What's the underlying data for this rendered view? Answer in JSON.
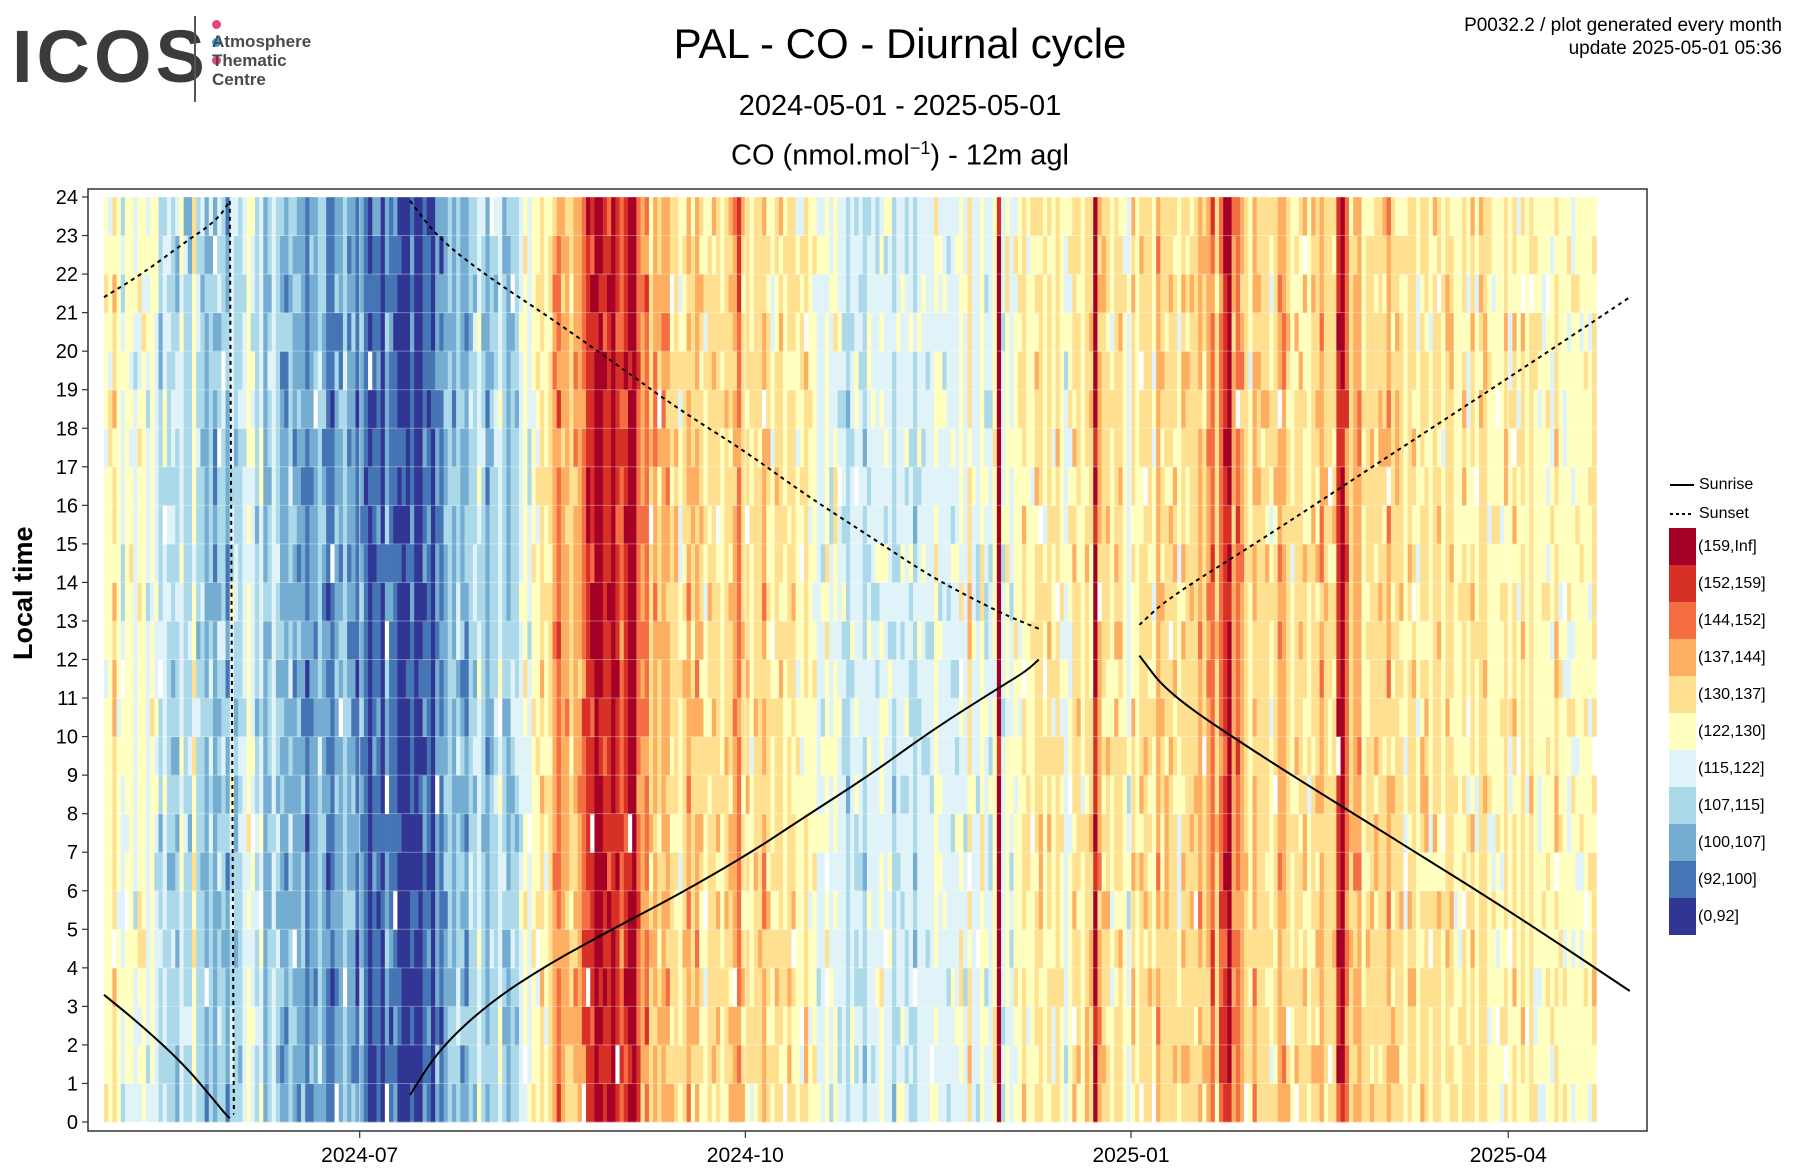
{
  "logo": {
    "word": "ICOS",
    "sub": [
      "Atmosphere",
      "Thematic",
      "Centre"
    ],
    "dot_colors": [
      "#e8457c",
      "#2aa8e0",
      "#e8457c"
    ]
  },
  "header": {
    "meta_line1": "P0032.2 / plot generated every month",
    "meta_line2": "update  2025-05-01 05:36"
  },
  "chart_data": {
    "type": "heatmap",
    "title": "PAL - CO - Diurnal cycle",
    "subtitle": "2024-05-01 - 2025-05-01",
    "variable_label_prefix": "CO (nmol.mol",
    "variable_label_exp": "−1",
    "variable_label_suffix": ") - 12m agl",
    "ylabel": "Local time",
    "xlabel": "",
    "x_range": [
      "2024-05-01",
      "2025-05-01"
    ],
    "x_ticks": [
      "2024-07",
      "2024-10",
      "2025-01",
      "2025-04"
    ],
    "x_tick_dates": [
      "2024-07-01",
      "2024-10-01",
      "2025-01-01",
      "2025-04-01"
    ],
    "y_range": [
      0,
      24
    ],
    "y_ticks": [
      0,
      1,
      2,
      3,
      4,
      5,
      6,
      7,
      8,
      9,
      10,
      11,
      12,
      13,
      14,
      15,
      16,
      17,
      18,
      19,
      20,
      21,
      22,
      23,
      24
    ],
    "grid": true,
    "legend_position": "right",
    "color_classes": [
      {
        "label": "(159,Inf]",
        "color": "#a50026"
      },
      {
        "label": "(152,159]",
        "color": "#d73027"
      },
      {
        "label": "(144,152]",
        "color": "#f46d43"
      },
      {
        "label": "(137,144]",
        "color": "#fdae61"
      },
      {
        "label": "(130,137]",
        "color": "#fee090"
      },
      {
        "label": "(122,130]",
        "color": "#ffffbf"
      },
      {
        "label": "(115,122]",
        "color": "#e0f3f8"
      },
      {
        "label": "(107,115]",
        "color": "#abd9e9"
      },
      {
        "label": "(100,107]",
        "color": "#74add1"
      },
      {
        "label": "(92,100]",
        "color": "#4575b4"
      },
      {
        "label": "(0,92]",
        "color": "#313695"
      }
    ],
    "daily_class_index": [
      5,
      5,
      4,
      5,
      6,
      5,
      5,
      6,
      5,
      5,
      6,
      5,
      6,
      7,
      6,
      7,
      7,
      7,
      6,
      7,
      7,
      5,
      7,
      7,
      8,
      7,
      8,
      7,
      7,
      8,
      6,
      7,
      7,
      6,
      5,
      6,
      7,
      6,
      8,
      7,
      6,
      7,
      8,
      8,
      7,
      8,
      8,
      8,
      9,
      8,
      8,
      7,
      8,
      9,
      9,
      8,
      8,
      7,
      8,
      8,
      9,
      8,
      9,
      10,
      9,
      9,
      10,
      8,
      9,
      9,
      10,
      10,
      10,
      9,
      10,
      10,
      9,
      9,
      10,
      8,
      9,
      8,
      7,
      8,
      7,
      8,
      8,
      7,
      7,
      6,
      7,
      8,
      7,
      7,
      6,
      7,
      8,
      7,
      7,
      6,
      5,
      6,
      5,
      5,
      4,
      5,
      4,
      3,
      2,
      3,
      3,
      4,
      3,
      3,
      2,
      1,
      1,
      0,
      0,
      1,
      1,
      0,
      1,
      2,
      1,
      0,
      0,
      2,
      3,
      2,
      4,
      3,
      4,
      3,
      3,
      4,
      4,
      5,
      4,
      3,
      4,
      3,
      4,
      5,
      4,
      4,
      4,
      5,
      4,
      4,
      3,
      2,
      4,
      4,
      5,
      4,
      4,
      3,
      4,
      5,
      4,
      4,
      5,
      4,
      4,
      5,
      5,
      4,
      5,
      5,
      6,
      6,
      5,
      6,
      5,
      6,
      6,
      7,
      6,
      6,
      6,
      7,
      6,
      6,
      6,
      5,
      6,
      6,
      7,
      6,
      6,
      6,
      6,
      7,
      6,
      6,
      6,
      6,
      5,
      6,
      6,
      6,
      6,
      6,
      5,
      6,
      4,
      6,
      6,
      5,
      6,
      6,
      5,
      0,
      6,
      5,
      6,
      5,
      5,
      4,
      5,
      5,
      4,
      4,
      5,
      4,
      5,
      4,
      5,
      6,
      5,
      4,
      4,
      5,
      4,
      4,
      0,
      3,
      4,
      4,
      5,
      4,
      4,
      5,
      6,
      4,
      5,
      4,
      4,
      4,
      5,
      3,
      4,
      4,
      4,
      4,
      5,
      4,
      4,
      4,
      4,
      3,
      4,
      3,
      2,
      4,
      2,
      1,
      0,
      3,
      2,
      3,
      4,
      5,
      3,
      4,
      4,
      4,
      5,
      4,
      3,
      3,
      4,
      5,
      4,
      4,
      4,
      5,
      4,
      4,
      3,
      4,
      4,
      4,
      1,
      0,
      2,
      4,
      3,
      3,
      5,
      4,
      4,
      4,
      4,
      4,
      3,
      4,
      4,
      4,
      5,
      4,
      4,
      5,
      4,
      4,
      5,
      4,
      4,
      5,
      4,
      4,
      5,
      5,
      4,
      5,
      4,
      5,
      4,
      4,
      5,
      5,
      5,
      5,
      4,
      5,
      4,
      5,
      4,
      5,
      4,
      5,
      5,
      5,
      5,
      5,
      4,
      5,
      5,
      5,
      5,
      5,
      5,
      5,
      5,
      4
    ],
    "sunrise": {
      "name": "Sunrise",
      "dates": [
        "2024-05-01",
        "2024-05-10",
        "2024-05-20",
        "2024-05-27",
        "2024-05-30",
        "2024-05-31"
      ],
      "hours": [
        3.3,
        2.5,
        1.5,
        0.6,
        0.2,
        0.1
      ],
      "dates2": [
        "2024-07-13",
        "2024-07-20",
        "2024-08-01",
        "2024-08-15",
        "2024-09-01",
        "2024-09-15",
        "2024-10-01",
        "2024-10-15",
        "2024-11-01",
        "2024-11-15",
        "2024-12-01",
        "2024-12-07",
        "2024-12-10"
      ],
      "hours2": [
        0.7,
        1.9,
        3.1,
        4.1,
        5.1,
        5.9,
        6.9,
        7.9,
        9.1,
        10.2,
        11.3,
        11.7,
        12.0
      ],
      "dates3": [
        "2025-01-03",
        "2025-01-10",
        "2025-02-01",
        "2025-03-01",
        "2025-04-01",
        "2025-04-30"
      ],
      "hours3": [
        12.1,
        11.1,
        9.5,
        7.6,
        5.5,
        3.4
      ]
    },
    "sunset": {
      "name": "Sunset",
      "dates": [
        "2024-05-01",
        "2024-05-10",
        "2024-05-20",
        "2024-05-28",
        "2024-05-31"
      ],
      "hours": [
        21.4,
        22.0,
        22.8,
        23.4,
        23.9
      ],
      "dates2": [
        "2024-05-31",
        "2024-06-01"
      ],
      "hours2": [
        23.9,
        0.2
      ],
      "dates3": [
        "2024-07-13",
        "2024-07-20",
        "2024-08-01",
        "2024-08-15",
        "2024-09-01",
        "2024-09-15",
        "2024-10-01",
        "2024-10-15",
        "2024-11-01",
        "2024-11-15",
        "2024-12-01",
        "2024-12-10"
      ],
      "hours3": [
        23.9,
        22.9,
        21.9,
        20.9,
        19.6,
        18.5,
        17.4,
        16.3,
        15.1,
        14.1,
        13.2,
        12.8
      ],
      "dates4": [
        "2025-01-03",
        "2025-01-10",
        "2025-02-01",
        "2025-03-01",
        "2025-04-01",
        "2025-04-30"
      ],
      "hours4": [
        12.9,
        13.6,
        15.1,
        17.1,
        19.3,
        21.4
      ]
    }
  }
}
